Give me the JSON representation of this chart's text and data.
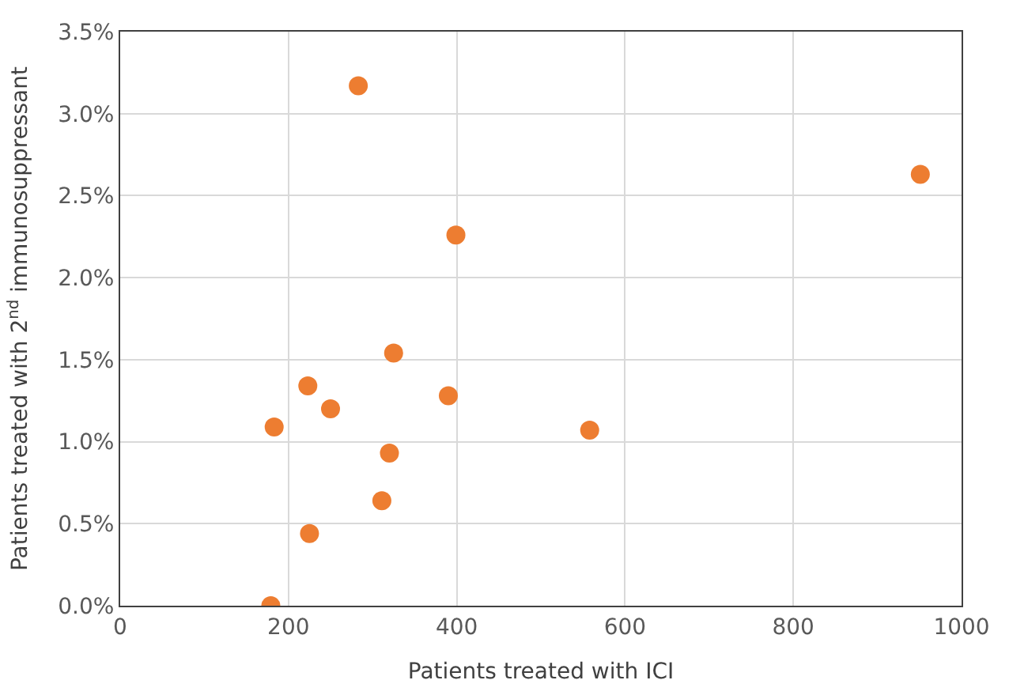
{
  "chart_data": {
    "type": "scatter",
    "xlabel": "Patients treated with ICI",
    "ylabel": "Patients treated with 2$^{nd}$ immunosuppressant",
    "x": [
      283,
      399,
      325,
      223,
      250,
      390,
      183,
      558,
      320,
      311,
      225,
      179,
      951
    ],
    "values": [
      3.17,
      2.26,
      1.54,
      1.34,
      1.2,
      1.28,
      1.09,
      1.07,
      0.93,
      0.64,
      0.44,
      0.0,
      2.63
    ],
    "color": "#ed7d31",
    "marker": "circle",
    "xlim": [
      0,
      1000
    ],
    "xticks": [
      0,
      200,
      400,
      600,
      800,
      1000
    ],
    "ylim": [
      0,
      3.5
    ],
    "yticks": [
      {
        "value": 0,
        "label": "0.0%"
      },
      {
        "value": 0.5,
        "label": "0.5%"
      },
      {
        "value": 1,
        "label": "1.0%"
      },
      {
        "value": 1.5,
        "label": "1.5%"
      },
      {
        "value": 2,
        "label": "2.0%"
      },
      {
        "value": 2.5,
        "label": "2.5%"
      },
      {
        "value": 3,
        "label": "3.0%"
      },
      {
        "value": 3.5,
        "label": "3.5%"
      }
    ],
    "grid": true,
    "legend": false
  }
}
